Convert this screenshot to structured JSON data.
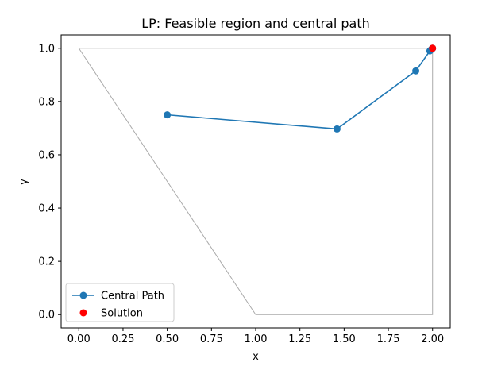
{
  "chart_data": {
    "type": "line",
    "title": "LP: Feasible region and central path",
    "xlabel": "x",
    "ylabel": "y",
    "xlim": [
      -0.1,
      2.1
    ],
    "ylim": [
      -0.05,
      1.05
    ],
    "xticks": [
      "0.00",
      "0.25",
      "0.50",
      "0.75",
      "1.00",
      "1.25",
      "1.50",
      "1.75",
      "2.00"
    ],
    "yticks": [
      "0.0",
      "0.2",
      "0.4",
      "0.6",
      "0.8",
      "1.0"
    ],
    "grid": false,
    "legend_position": "lower-left",
    "feasible_region": {
      "color": "#aaaaaa",
      "vertices": [
        [
          0,
          1
        ],
        [
          1,
          0
        ],
        [
          2,
          0
        ],
        [
          2,
          1
        ]
      ]
    },
    "series": [
      {
        "name": "Central Path",
        "color": "#1f77b4",
        "marker": "circle",
        "x": [
          0.5,
          1.46,
          1.905,
          1.985,
          1.993,
          1.997,
          1.999,
          2.0
        ],
        "y": [
          0.75,
          0.697,
          0.915,
          0.99,
          0.995,
          0.998,
          0.999,
          1.0
        ]
      },
      {
        "name": "Solution",
        "color": "#ff0000",
        "marker": "circle",
        "x": [
          2.0
        ],
        "y": [
          1.0
        ]
      }
    ]
  }
}
